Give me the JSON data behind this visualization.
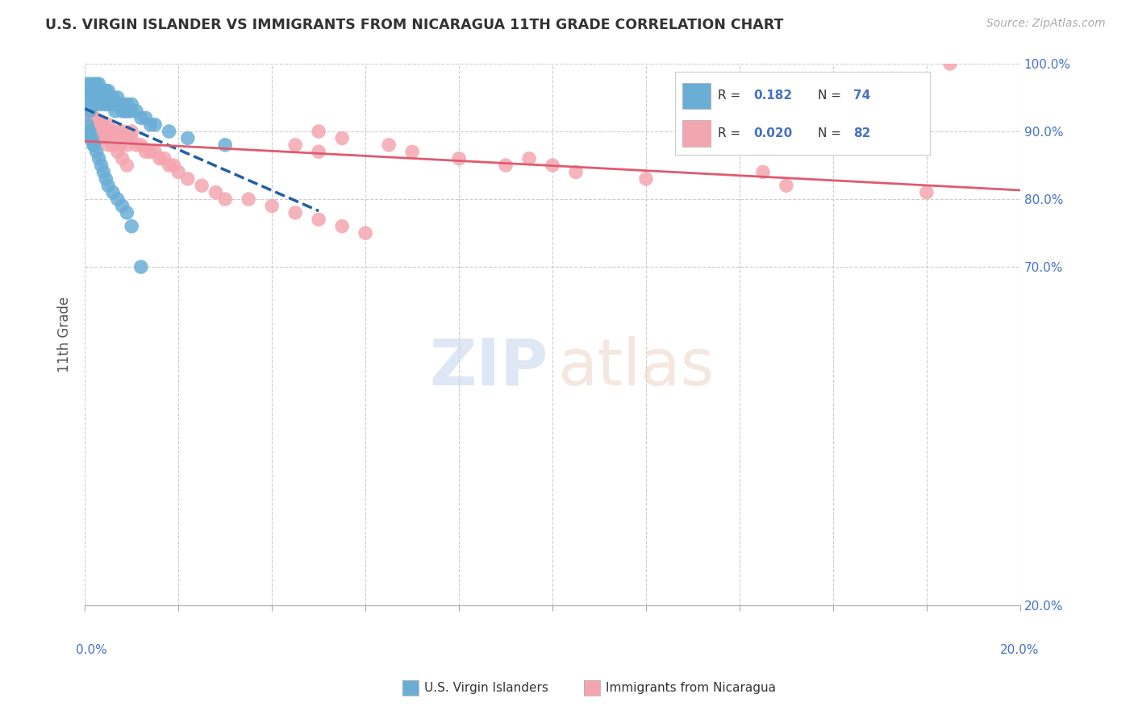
{
  "title": "U.S. VIRGIN ISLANDER VS IMMIGRANTS FROM NICARAGUA 11TH GRADE CORRELATION CHART",
  "source_text": "Source: ZipAtlas.com",
  "ylabel": "11th Grade",
  "xmin": 0.0,
  "xmax": 20.0,
  "ymin": 20.0,
  "ymax": 100.0,
  "ytick_values": [
    20.0,
    70.0,
    80.0,
    90.0,
    100.0
  ],
  "blue_color": "#6aaed6",
  "pink_color": "#f4a6b0",
  "blue_line_color": "#1f5fa6",
  "pink_line_color": "#e05a6e",
  "blue_r_val": "0.182",
  "blue_n_val": "74",
  "pink_r_val": "0.020",
  "pink_n_val": "82",
  "watermark_zip": "ZIP",
  "watermark_atlas": "atlas",
  "background_color": "#ffffff",
  "blue_scatter_x": [
    0.05,
    0.08,
    0.1,
    0.1,
    0.1,
    0.12,
    0.15,
    0.15,
    0.18,
    0.2,
    0.2,
    0.2,
    0.22,
    0.25,
    0.25,
    0.28,
    0.3,
    0.3,
    0.3,
    0.32,
    0.35,
    0.35,
    0.38,
    0.4,
    0.4,
    0.42,
    0.45,
    0.45,
    0.48,
    0.5,
    0.5,
    0.55,
    0.55,
    0.6,
    0.6,
    0.65,
    0.7,
    0.7,
    0.75,
    0.8,
    0.8,
    0.85,
    0.9,
    0.9,
    0.95,
    1.0,
    1.0,
    1.1,
    1.2,
    1.3,
    1.4,
    1.5,
    1.8,
    2.2,
    3.0,
    0.05,
    0.08,
    0.1,
    0.12,
    0.15,
    0.18,
    0.2,
    0.25,
    0.3,
    0.35,
    0.4,
    0.45,
    0.5,
    0.6,
    0.7,
    0.8,
    0.9,
    1.0,
    1.2
  ],
  "blue_scatter_y": [
    97,
    96,
    95,
    94,
    93,
    97,
    96,
    95,
    94,
    97,
    96,
    95,
    94,
    97,
    96,
    95,
    97,
    96,
    95,
    94,
    96,
    95,
    96,
    96,
    95,
    94,
    96,
    95,
    94,
    96,
    95,
    95,
    94,
    95,
    94,
    93,
    95,
    94,
    94,
    94,
    93,
    93,
    94,
    93,
    93,
    94,
    93,
    93,
    92,
    92,
    91,
    91,
    90,
    89,
    88,
    91,
    90,
    90,
    89,
    89,
    88,
    88,
    87,
    86,
    85,
    84,
    83,
    82,
    81,
    80,
    79,
    78,
    76,
    70
  ],
  "pink_scatter_x": [
    0.05,
    0.08,
    0.1,
    0.12,
    0.15,
    0.18,
    0.2,
    0.2,
    0.25,
    0.25,
    0.3,
    0.3,
    0.35,
    0.4,
    0.4,
    0.45,
    0.5,
    0.5,
    0.55,
    0.6,
    0.6,
    0.65,
    0.7,
    0.7,
    0.75,
    0.8,
    0.8,
    0.9,
    0.9,
    1.0,
    1.0,
    1.1,
    1.2,
    1.3,
    1.4,
    1.5,
    1.6,
    1.7,
    1.8,
    1.9,
    2.0,
    2.2,
    2.5,
    2.8,
    3.0,
    3.5,
    4.0,
    4.5,
    5.0,
    5.5,
    6.0,
    0.1,
    0.2,
    0.3,
    0.4,
    0.5,
    0.6,
    0.7,
    0.8,
    0.9,
    0.2,
    0.3,
    0.4,
    0.5,
    0.3,
    0.4,
    4.5,
    5.0,
    9.5,
    10.0,
    14.5,
    18.5,
    5.0,
    5.5,
    6.5,
    7.0,
    8.0,
    9.0,
    10.5,
    12.0,
    15.0,
    18.0
  ],
  "pink_scatter_y": [
    94,
    93,
    93,
    92,
    92,
    91,
    92,
    91,
    91,
    90,
    91,
    90,
    90,
    91,
    90,
    89,
    91,
    90,
    89,
    90,
    89,
    89,
    90,
    89,
    88,
    90,
    89,
    89,
    88,
    90,
    89,
    88,
    88,
    87,
    87,
    87,
    86,
    86,
    85,
    85,
    84,
    83,
    82,
    81,
    80,
    80,
    79,
    78,
    77,
    76,
    75,
    93,
    92,
    91,
    90,
    89,
    88,
    87,
    86,
    85,
    91,
    90,
    89,
    88,
    90,
    89,
    88,
    87,
    86,
    85,
    84,
    100,
    90,
    89,
    88,
    87,
    86,
    85,
    84,
    83,
    82,
    81
  ]
}
